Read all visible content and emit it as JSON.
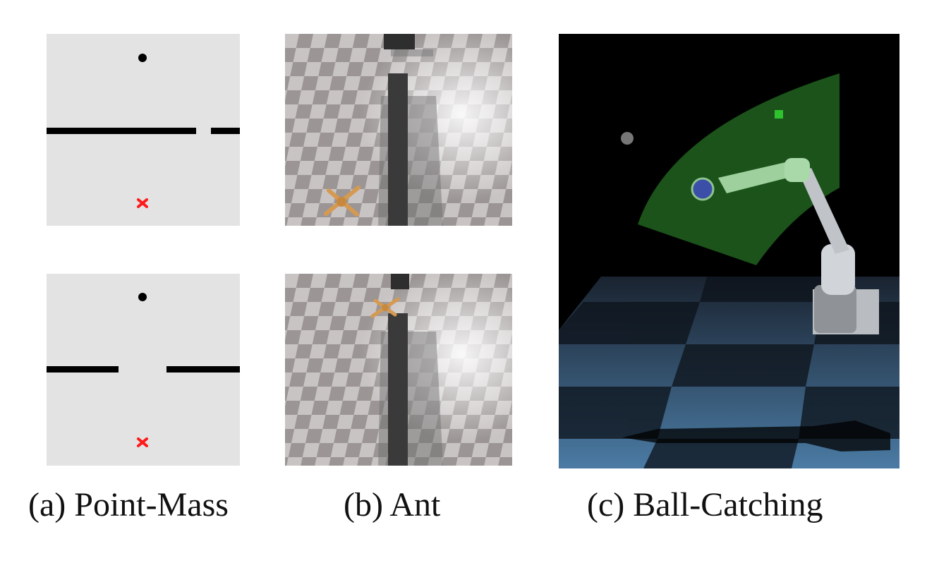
{
  "captions": {
    "a": "(a) Point-Mass",
    "b": "(b) Ant",
    "c": "(c) Ball-Catching"
  },
  "colors": {
    "point_mass_bg": "#e3e3e3",
    "wall": "#000000",
    "goal_marker": "#ff1a1a",
    "target_zone": "#1d5a1d",
    "ball": "#3b4fa8",
    "floor_blue": "#4b7ba4"
  },
  "icons": {
    "goal": "red-x-icon",
    "agent": "black-dot-icon"
  }
}
